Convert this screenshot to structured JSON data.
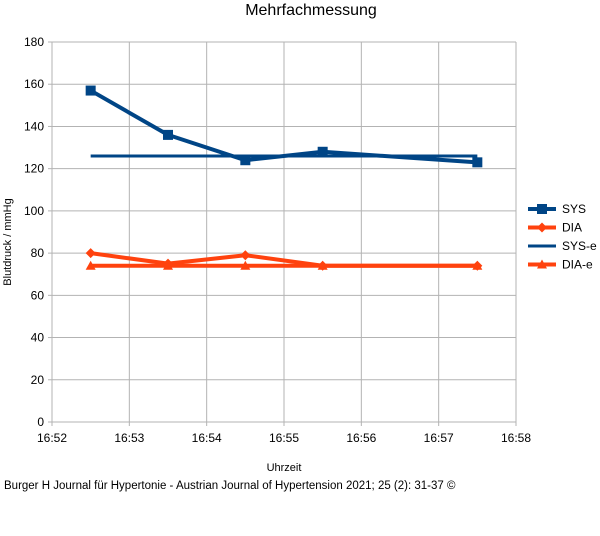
{
  "chart_data": {
    "type": "line",
    "title": "Mehrfachmessung",
    "xlabel": "Uhrzeit",
    "ylabel": "Blutdruck / mmHg",
    "ylim": [
      0,
      180
    ],
    "yticks": [
      "0",
      "20",
      "40",
      "60",
      "80",
      "100",
      "120",
      "140",
      "160",
      "180"
    ],
    "xticks": [
      "16:52",
      "16:53",
      "16:54",
      "16:55",
      "16:56",
      "16:57",
      "16:58"
    ],
    "x": [
      "16:52:30",
      "16:53:30",
      "16:54:30",
      "16:55:30",
      "16:57:30"
    ],
    "grid": true,
    "legend_position": "right",
    "series": [
      {
        "name": "SYS",
        "color": "#004586",
        "marker": "square",
        "values": [
          157,
          136,
          124,
          128,
          123
        ]
      },
      {
        "name": "DIA",
        "color": "#ff420e",
        "marker": "diamond",
        "values": [
          80,
          75,
          79,
          74,
          74
        ]
      },
      {
        "name": "SYS-e",
        "color": "#004586",
        "marker": "none",
        "values": [
          126,
          126,
          126,
          126,
          126
        ]
      },
      {
        "name": "DIA-e",
        "color": "#ff420e",
        "marker": "triangle",
        "values": [
          74,
          74,
          74,
          74,
          74
        ]
      }
    ]
  },
  "footer": {
    "text": "Burger H Journal für Hypertonie - Austrian Journal of Hypertension 2021; 25 (2): 31-37 ©"
  }
}
